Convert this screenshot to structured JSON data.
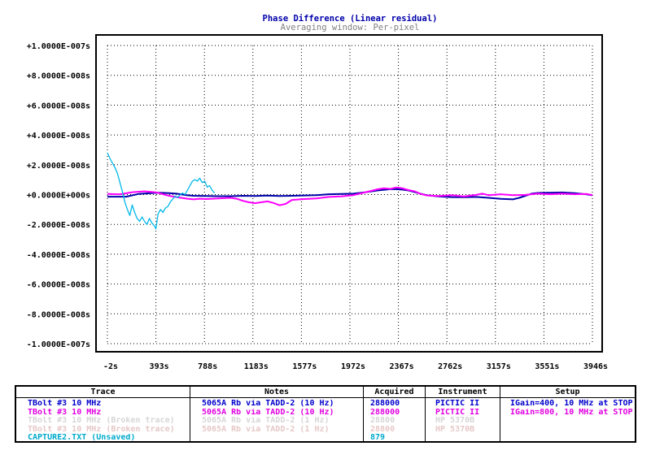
{
  "chart_data": {
    "type": "line",
    "title": "Phase Difference (Linear residual)",
    "subtitle": "Averaging window: Per-pixel",
    "xlabel": "",
    "ylabel": "",
    "grid": true,
    "xlim": [
      -2,
      3946
    ],
    "ylim": [
      -1e-07,
      1e-07
    ],
    "x_ticks": [
      "-2s",
      "393s",
      "788s",
      "1183s",
      "1577s",
      "1972s",
      "2367s",
      "2762s",
      "3157s",
      "3551s",
      "3946s"
    ],
    "y_ticks": [
      "+1.0000E-007s",
      "+8.0000E-008s",
      "+6.0000E-008s",
      "+4.0000E-008s",
      "+2.0000E-008s",
      "+0.0000E+000s",
      "-2.0000E-008s",
      "-4.0000E-008s",
      "-6.0000E-008s",
      "-8.0000E-008s",
      "-1.0000E-007s"
    ],
    "y_tick_values": [
      1e-07,
      8e-08,
      6e-08,
      4e-08,
      2e-08,
      0,
      -2e-08,
      -4e-08,
      -6e-08,
      -8e-08,
      -1e-07
    ],
    "series": [
      {
        "name": "TBolt #3 10 MHz (IGain=400)",
        "color": "#0000aa",
        "x": [
          -2,
          150,
          250,
          350,
          420,
          500,
          560,
          600,
          650,
          700,
          800,
          900,
          1000,
          1100,
          1200,
          1300,
          1400,
          1500,
          1600,
          1700,
          1800,
          1900,
          2000,
          2100,
          2200,
          2300,
          2350,
          2400,
          2450,
          2500,
          2550,
          2600,
          2700,
          2800,
          2900,
          3000,
          3100,
          3200,
          3300,
          3350,
          3400,
          3450,
          3500,
          3550,
          3600,
          3700,
          3800,
          3900,
          3946
        ],
        "y": [
          -1.4e-09,
          -1.4e-09,
          4e-10,
          9e-10,
          1.2e-09,
          9e-10,
          6e-10,
          1e-10,
          -5e-10,
          -8e-10,
          -1e-09,
          -1.1e-09,
          -1.1e-09,
          -8e-10,
          -9e-10,
          -7e-10,
          -9e-10,
          -8e-10,
          -6e-10,
          -4e-10,
          2e-10,
          4e-10,
          6e-10,
          1.6e-09,
          2.8e-09,
          3.6e-09,
          3.6e-09,
          3.3e-09,
          2.7e-09,
          1.7e-09,
          5e-10,
          -5e-10,
          -1.3e-09,
          -1.7e-09,
          -1.8e-09,
          -1.6e-09,
          -2.2e-09,
          -2.9e-09,
          -3.2e-09,
          -2.2e-09,
          -8e-10,
          6e-10,
          1.1e-09,
          1.2e-09,
          1.2e-09,
          1.4e-09,
          9e-10,
          1e-10,
          -5e-10
        ]
      },
      {
        "name": "TBolt #3 10 MHz (IGain=800)",
        "color": "#ff00ff",
        "x": [
          -2,
          100,
          200,
          300,
          400,
          450,
          500,
          550,
          600,
          650,
          700,
          750,
          800,
          900,
          1000,
          1050,
          1100,
          1150,
          1200,
          1250,
          1300,
          1350,
          1400,
          1450,
          1500,
          1600,
          1700,
          1800,
          1900,
          2000,
          2100,
          2200,
          2250,
          2300,
          2350,
          2400,
          2450,
          2500,
          2550,
          2600,
          2700,
          2800,
          2900,
          3000,
          3050,
          3100,
          3200,
          3300,
          3400,
          3500,
          3600,
          3700,
          3800,
          3900,
          3946
        ],
        "y": [
          4e-10,
          2e-10,
          1.6e-09,
          2.2e-09,
          1.4e-09,
          2e-10,
          -8e-10,
          -1.6e-09,
          -2.2e-09,
          -2.8e-09,
          -3.2e-09,
          -2.8e-09,
          -3e-09,
          -2.6e-09,
          -2.2e-09,
          -2.8e-09,
          -4.2e-09,
          -5.2e-09,
          -5.8e-09,
          -5.2e-09,
          -4.6e-09,
          -5.6e-09,
          -7.2e-09,
          -6.2e-09,
          -3.6e-09,
          -3e-09,
          -2.6e-09,
          -1.6e-09,
          -1.2e-09,
          -4e-10,
          1.6e-09,
          3.6e-09,
          4.2e-09,
          3.8e-09,
          4.8e-09,
          4.2e-09,
          3e-09,
          2.2e-09,
          4e-10,
          -6e-10,
          -1e-09,
          -4e-10,
          -1.2e-09,
          -2e-10,
          6e-10,
          -4e-10,
          2e-10,
          -4e-10,
          -2e-10,
          6e-10,
          2e-10,
          6e-10,
          2e-10,
          4e-10,
          -3e-10
        ]
      },
      {
        "name": "CAPTURE2.TXT (Unsaved)",
        "color": "#00b8e8",
        "x": [
          -2,
          20,
          40,
          60,
          80,
          100,
          120,
          140,
          160,
          180,
          200,
          220,
          240,
          260,
          280,
          300,
          320,
          340,
          360,
          380,
          393,
          410,
          430,
          450,
          470,
          490,
          510,
          530,
          550,
          570,
          590,
          610,
          630,
          650,
          670,
          690,
          710,
          730,
          750,
          770,
          790,
          810,
          830,
          850,
          870
        ],
        "y": [
          2.8e-08,
          2.4e-08,
          2.1e-08,
          1.8e-08,
          1.4e-08,
          8e-09,
          2e-09,
          -5e-09,
          -1e-08,
          -1.4e-08,
          -7e-09,
          -1.2e-08,
          -1.6e-08,
          -1.8e-08,
          -1.5e-08,
          -1.8e-08,
          -2e-08,
          -1.6e-08,
          -1.9e-08,
          -2.1e-08,
          -2.3e-08,
          -1.3e-08,
          -1e-08,
          -1.2e-08,
          -9e-09,
          -8e-09,
          -5e-09,
          -3e-09,
          -1e-09,
          -2e-09,
          0.0,
          1e-09,
          0.0,
          3e-09,
          6e-09,
          9e-09,
          1e-08,
          9e-09,
          1.1e-08,
          8e-09,
          9e-09,
          5e-09,
          6e-09,
          3e-09,
          1e-09
        ]
      }
    ]
  },
  "legend": {
    "headers": {
      "trace": "Trace",
      "notes": "Notes",
      "acquired": "Acquired",
      "instrument": "Instrument",
      "setup": "Setup"
    },
    "rows": [
      {
        "trace": "TBolt #3 10 MHz",
        "notes": "5065A Rb via TADD-2 (10 Hz)",
        "acquired": "288000",
        "instrument": "PICTIC II",
        "setup": "IGain=400, 10 MHz at STOP",
        "color": "#0000cc"
      },
      {
        "trace": "TBolt #3 10 MHz",
        "notes": "5065A Rb via TADD-2 (10 Hz)",
        "acquired": "288000",
        "instrument": "PICTIC II",
        "setup": "IGain=800, 10 MHz at STOP",
        "color": "#e000e0"
      },
      {
        "trace": "TBolt #3 10 MHz (Broken trace)",
        "notes": "5065A Rb via TADD-2 (1 Hz)",
        "acquired": "28800",
        "instrument": "HP 5370B",
        "setup": "",
        "color": "#d6d6d6"
      },
      {
        "trace": "TBolt #3 10 MHz (Broken trace)",
        "notes": "5065A Rb via TADD-2 (1 Hz)",
        "acquired": "28800",
        "instrument": "HP 5370B",
        "setup": "",
        "color": "#e6c8c8"
      },
      {
        "trace": "CAPTURE2.TXT (Unsaved)",
        "notes": "",
        "acquired": "879",
        "instrument": "",
        "setup": "",
        "color": "#00aacc"
      }
    ]
  }
}
